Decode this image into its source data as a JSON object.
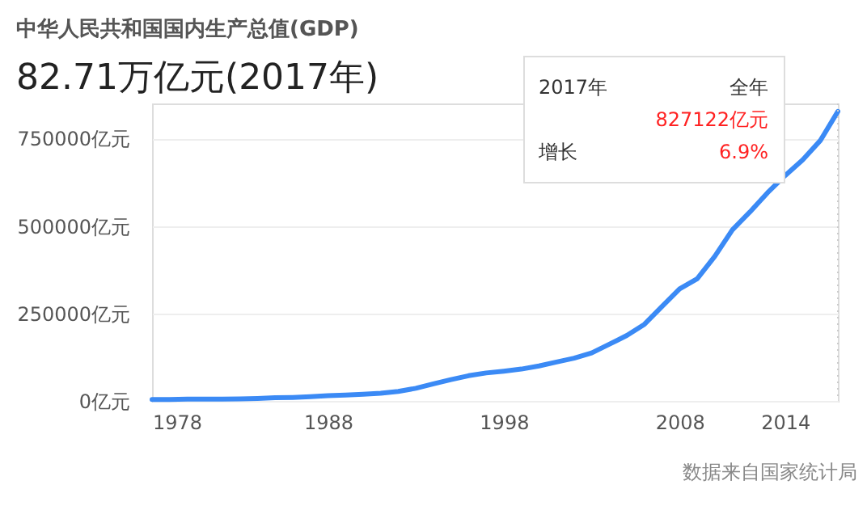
{
  "chart_data": {
    "type": "line",
    "title": "中华人民共和国国内生产总值(GDP)",
    "subtitle": "82.71万亿元(2017年)",
    "x": [
      1978,
      1979,
      1980,
      1981,
      1982,
      1983,
      1984,
      1985,
      1986,
      1987,
      1988,
      1989,
      1990,
      1991,
      1992,
      1993,
      1994,
      1995,
      1996,
      1997,
      1998,
      1999,
      2000,
      2001,
      2002,
      2003,
      2004,
      2005,
      2006,
      2007,
      2008,
      2009,
      2010,
      2011,
      2012,
      2013,
      2014,
      2015,
      2016,
      2017
    ],
    "series": [
      {
        "color": "#3b8af5",
        "values": [
          4000,
          4000,
          5000,
          5000,
          5000,
          6000,
          7000,
          9000,
          10000,
          12000,
          15000,
          17000,
          19000,
          22000,
          27000,
          36000,
          49000,
          61000,
          72000,
          80000,
          85000,
          91000,
          100000,
          111000,
          122000,
          137000,
          162000,
          187000,
          219000,
          270000,
          320000,
          349000,
          413000,
          489000,
          540000,
          595000,
          644000,
          689000,
          744000,
          827122
        ]
      }
    ],
    "xlim": [
      1978,
      2017
    ],
    "xticks": [
      1978,
      1988,
      1998,
      2008,
      2014
    ],
    "ylim": [
      0,
      850000
    ],
    "yticks": [
      {
        "value": 0,
        "label": "0亿元"
      },
      {
        "value": 250000,
        "label": "250000亿元"
      },
      {
        "value": 500000,
        "label": "500000亿元"
      },
      {
        "value": 750000,
        "label": "750000亿元"
      }
    ],
    "grid": "y",
    "marker": "none",
    "line_style": "solid",
    "ref_lines": [
      {
        "axis": "x",
        "value": 2017,
        "color": "#cccccc",
        "line_style": "dotted"
      }
    ],
    "annotations": [
      "2017年",
      "全年",
      "827122亿元",
      "增长",
      "6.9%",
      "数据来自国家统计局"
    ]
  }
}
